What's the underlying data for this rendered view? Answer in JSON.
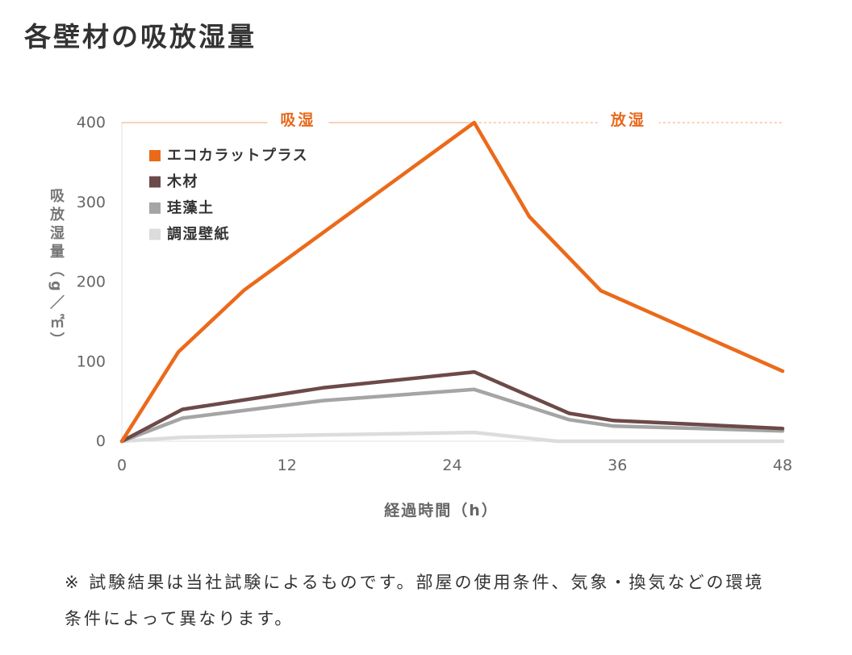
{
  "chart_data": {
    "type": "line",
    "title": "各壁材の吸放湿量",
    "xlabel": "経過時間（h）",
    "ylabel": "吸放湿量（g／㎡）",
    "xlim": [
      0,
      48
    ],
    "ylim": [
      0,
      400
    ],
    "xticks": [
      0,
      12,
      24,
      36,
      48
    ],
    "yticks": [
      0,
      100,
      200,
      300,
      400
    ],
    "grid": false,
    "legend_position": "top-left",
    "phases": [
      {
        "label": "吸湿",
        "x_range": [
          0,
          25.6
        ],
        "line_style": "solid",
        "color": "#f4b892",
        "label_color": "#e8691c"
      },
      {
        "label": "放湿",
        "x_range": [
          25.6,
          48
        ],
        "line_style": "dashed",
        "color": "#f4b892",
        "label_color": "#e8691c"
      }
    ],
    "series": [
      {
        "name": "エコカラットプラス",
        "color": "#eb6a1a",
        "x": [
          0,
          4.1,
          8.9,
          25.6,
          29.6,
          34.8,
          48
        ],
        "y": [
          0,
          112,
          190,
          400,
          282,
          189,
          88
        ]
      },
      {
        "name": "木材",
        "color": "#6c4a49",
        "x": [
          0,
          4.4,
          14.6,
          25.6,
          32.5,
          35.7,
          48
        ],
        "y": [
          0,
          40,
          67,
          87,
          35,
          26,
          16
        ]
      },
      {
        "name": "珪藻土",
        "color": "#a5a5a5",
        "x": [
          0,
          4.4,
          14.6,
          25.6,
          32.5,
          35.7,
          48
        ],
        "y": [
          0,
          29,
          51,
          65,
          27,
          19,
          13
        ]
      },
      {
        "name": "調湿壁紙",
        "color": "#dcdcdc",
        "x": [
          0,
          4.4,
          25.6,
          31.6,
          48
        ],
        "y": [
          0,
          5,
          11,
          0,
          0
        ]
      }
    ]
  },
  "note": {
    "lines": [
      "※ 試験結果は当社試験によるものです。部屋の使用条件、気象・換気などの環境",
      "条件によって異なります。"
    ]
  }
}
